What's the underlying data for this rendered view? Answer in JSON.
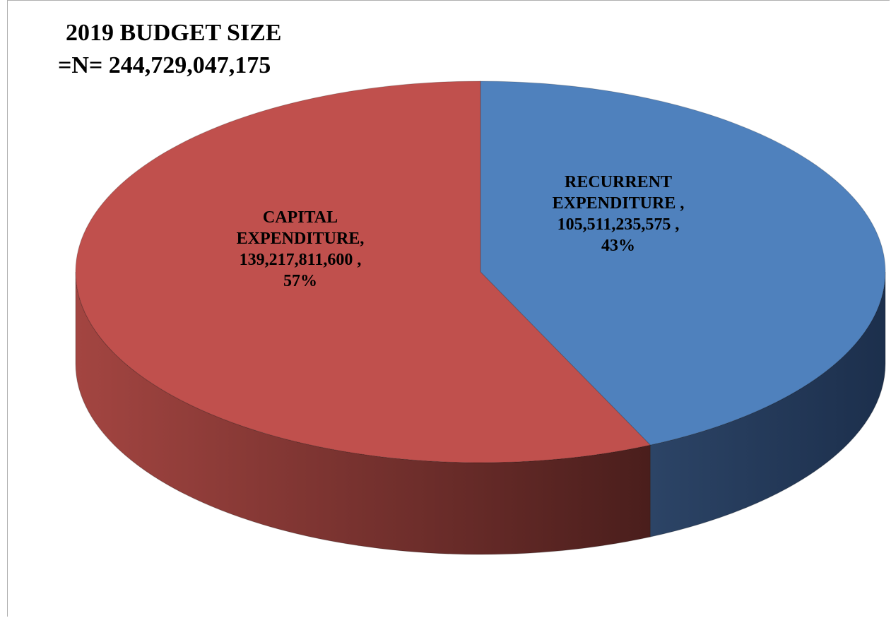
{
  "title": {
    "line1": "2019 BUDGET SIZE",
    "line2": "=N= 244,729,047,175"
  },
  "colors": {
    "recurrent_top": "#4f81bd",
    "recurrent_side_light": "#2c4466",
    "recurrent_side_dark": "#1c2f4c",
    "capital_top": "#c0504d",
    "capital_side_light": "#a34541",
    "capital_side_dark": "#4a1e1c"
  },
  "chart_data": {
    "type": "pie",
    "style": "3d",
    "title": "2019 BUDGET SIZE =N= 244,729,047,175",
    "legend": "none",
    "slices": [
      {
        "category": "RECURRENT EXPENDITURE",
        "value": 105511235575,
        "percent": 43,
        "label_lines": [
          "RECURRENT",
          "EXPENDITURE ,",
          "105,511,235,575 ,",
          "43%"
        ]
      },
      {
        "category": "CAPITAL EXPENDITURE",
        "value": 139217811600,
        "percent": 57,
        "label_lines": [
          "CAPITAL",
          "EXPENDITURE,",
          "139,217,811,600 ,",
          "57%"
        ]
      }
    ]
  }
}
